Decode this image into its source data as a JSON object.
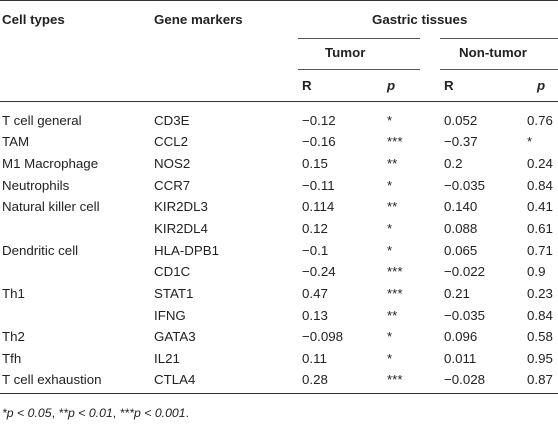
{
  "header": {
    "cell_types": "Cell types",
    "gene_markers": "Gene markers",
    "gastric_tissues": "Gastric tissues",
    "tumor": "Tumor",
    "non_tumor": "Non-tumor",
    "r": "R",
    "p": "p"
  },
  "rows": [
    {
      "cell": "T cell general",
      "gene": "CD3E",
      "tumor_r": "−0.12",
      "tumor_p": "*",
      "non_r": "0.052",
      "non_p": "0.76"
    },
    {
      "cell": "TAM",
      "gene": "CCL2",
      "tumor_r": "−0.16",
      "tumor_p": "***",
      "non_r": "−0.37",
      "non_p": "*"
    },
    {
      "cell": "M1 Macrophage",
      "gene": "NOS2",
      "tumor_r": "0.15",
      "tumor_p": "**",
      "non_r": "0.2",
      "non_p": "0.24"
    },
    {
      "cell": "Neutrophils",
      "gene": "CCR7",
      "tumor_r": "−0.11",
      "tumor_p": "*",
      "non_r": "−0.035",
      "non_p": "0.84"
    },
    {
      "cell": "Natural killer cell",
      "gene": "KIR2DL3",
      "tumor_r": "0.114",
      "tumor_p": "**",
      "non_r": "0.140",
      "non_p": "0.41"
    },
    {
      "cell": "",
      "gene": "KIR2DL4",
      "tumor_r": "0.12",
      "tumor_p": "*",
      "non_r": "0.088",
      "non_p": "0.61"
    },
    {
      "cell": "Dendritic cell",
      "gene": "HLA-DPB1",
      "tumor_r": "−0.1",
      "tumor_p": "*",
      "non_r": "0.065",
      "non_p": "0.71"
    },
    {
      "cell": "",
      "gene": "CD1C",
      "tumor_r": "−0.24",
      "tumor_p": "***",
      "non_r": "−0.022",
      "non_p": "0.9"
    },
    {
      "cell": "Th1",
      "gene": "STAT1",
      "tumor_r": "0.47",
      "tumor_p": "***",
      "non_r": "0.21",
      "non_p": "0.23"
    },
    {
      "cell": "",
      "gene": "IFNG",
      "tumor_r": "0.13",
      "tumor_p": "**",
      "non_r": "−0.035",
      "non_p": "0.84"
    },
    {
      "cell": "Th2",
      "gene": "GATA3",
      "tumor_r": "−0.098",
      "tumor_p": "*",
      "non_r": "0.096",
      "non_p": "0.58"
    },
    {
      "cell": "Tfh",
      "gene": "IL21",
      "tumor_r": "0.11",
      "tumor_p": "*",
      "non_r": "0.011",
      "non_p": "0.95"
    },
    {
      "cell": "T cell exhaustion",
      "gene": "CTLA4",
      "tumor_r": "0.28",
      "tumor_p": "***",
      "non_r": "−0.028",
      "non_p": "0.87"
    }
  ],
  "footnote": {
    "s1": "*p < 0.05",
    "sep1": ", ",
    "s2": "**p < 0.01",
    "sep2": ", ",
    "s3": "***p < 0.001",
    "end": "."
  }
}
